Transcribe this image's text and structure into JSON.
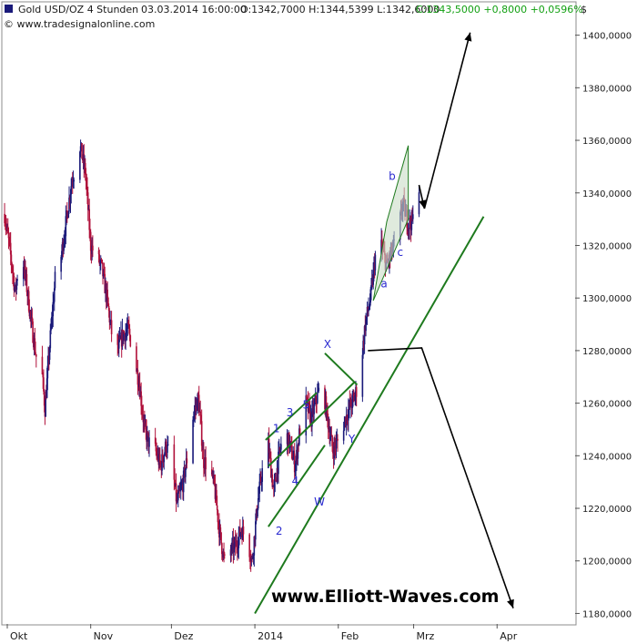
{
  "header": {
    "instrument": "Gold USD/OZ 4 Stunden",
    "datetime": "03.03.2014 16:00:00",
    "ohl": "O:1342,7000 H:1344,5399 L:1342,6000",
    "close_change": "C:1343,5000 +0,8000 +0,0596%",
    "copyright": "© www.tradesignalonline.com",
    "currency": "$"
  },
  "watermark": "www.Elliott-Waves.com",
  "colors": {
    "up_candle": "#1a1a7a",
    "down_candle": "#b0103a",
    "trend_green": "#1e7a1e",
    "channel_fill": "#c9dcc6",
    "wave_label": "#2a2ad0",
    "positive_change": "#12a012"
  },
  "chart_data": {
    "type": "candlestick",
    "title": "Gold USD/OZ 4 Stunden",
    "x_tick_labels": [
      "Okt",
      "Nov",
      "Dez",
      "2014",
      "Feb",
      "Mrz",
      "Apr"
    ],
    "y_ticks": [
      1180,
      1200,
      1220,
      1240,
      1260,
      1280,
      1300,
      1320,
      1340,
      1360,
      1380,
      1400
    ],
    "y_tick_labels": [
      "1180,0000",
      "1200,0000",
      "1220,0000",
      "1240,0000",
      "1260,0000",
      "1280,0000",
      "1300,0000",
      "1320,0000",
      "1340,0000",
      "1360,0000",
      "1380,0000",
      "1400,0000"
    ],
    "ylim": [
      1176,
      1412
    ],
    "x_domain": [
      "2013-10-01",
      "2014-04-30"
    ],
    "x_ticks": [
      "2013-10-01",
      "2013-11-01",
      "2013-12-01",
      "2014-01-01",
      "2014-02-01",
      "2014-03-01",
      "2014-04-01"
    ],
    "grid": false,
    "price_path": [
      [
        "2013-09-30",
        1332
      ],
      [
        "2013-10-02",
        1318
      ],
      [
        "2013-10-04",
        1302
      ],
      [
        "2013-10-06",
        1320
      ],
      [
        "2013-10-08",
        1306
      ],
      [
        "2013-10-10",
        1290
      ],
      [
        "2013-10-12",
        1276
      ],
      [
        "2013-10-14",
        1270
      ],
      [
        "2013-10-15",
        1258
      ],
      [
        "2013-10-17",
        1285
      ],
      [
        "2013-10-19",
        1310
      ],
      [
        "2013-10-21",
        1316
      ],
      [
        "2013-10-23",
        1330
      ],
      [
        "2013-10-25",
        1345
      ],
      [
        "2013-10-27",
        1352
      ],
      [
        "2013-10-28",
        1358
      ],
      [
        "2013-10-30",
        1348
      ],
      [
        "2013-11-01",
        1320
      ],
      [
        "2013-11-03",
        1316
      ],
      [
        "2013-11-05",
        1312
      ],
      [
        "2013-11-07",
        1300
      ],
      [
        "2013-11-09",
        1285
      ],
      [
        "2013-11-11",
        1280
      ],
      [
        "2013-11-13",
        1286
      ],
      [
        "2013-11-15",
        1288
      ],
      [
        "2013-11-17",
        1278
      ],
      [
        "2013-11-19",
        1268
      ],
      [
        "2013-11-21",
        1250
      ],
      [
        "2013-11-23",
        1244
      ],
      [
        "2013-11-25",
        1242
      ],
      [
        "2013-11-27",
        1236
      ],
      [
        "2013-11-29",
        1244
      ],
      [
        "2013-12-01",
        1238
      ],
      [
        "2013-12-03",
        1222
      ],
      [
        "2013-12-05",
        1228
      ],
      [
        "2013-12-07",
        1240
      ],
      [
        "2013-12-09",
        1255
      ],
      [
        "2013-12-11",
        1262
      ],
      [
        "2013-12-13",
        1238
      ],
      [
        "2013-12-15",
        1236
      ],
      [
        "2013-12-17",
        1228
      ],
      [
        "2013-12-19",
        1210
      ],
      [
        "2013-12-21",
        1198
      ],
      [
        "2013-12-23",
        1204
      ],
      [
        "2013-12-25",
        1206
      ],
      [
        "2013-12-27",
        1212
      ],
      [
        "2013-12-29",
        1208
      ],
      [
        "2013-12-31",
        1200
      ],
      [
        "2014-01-02",
        1222
      ],
      [
        "2014-01-04",
        1236
      ],
      [
        "2014-01-06",
        1244
      ],
      [
        "2014-01-08",
        1226
      ],
      [
        "2014-01-10",
        1240
      ],
      [
        "2014-01-12",
        1250
      ],
      [
        "2014-01-14",
        1244
      ],
      [
        "2014-01-16",
        1236
      ],
      [
        "2014-01-18",
        1252
      ],
      [
        "2014-01-20",
        1260
      ],
      [
        "2014-01-22",
        1254
      ],
      [
        "2014-01-24",
        1262
      ],
      [
        "2014-01-26",
        1268
      ],
      [
        "2014-01-28",
        1254
      ],
      [
        "2014-01-30",
        1242
      ],
      [
        "2014-02-01",
        1246
      ],
      [
        "2014-02-03",
        1252
      ],
      [
        "2014-02-05",
        1258
      ],
      [
        "2014-02-07",
        1262
      ],
      [
        "2014-02-09",
        1270
      ],
      [
        "2014-02-11",
        1290
      ],
      [
        "2014-02-13",
        1300
      ],
      [
        "2014-02-15",
        1318
      ],
      [
        "2014-02-17",
        1320
      ],
      [
        "2014-02-19",
        1312
      ],
      [
        "2014-02-21",
        1318
      ],
      [
        "2014-02-23",
        1324
      ],
      [
        "2014-02-25",
        1336
      ],
      [
        "2014-02-27",
        1328
      ],
      [
        "2014-03-01",
        1330
      ],
      [
        "2014-03-03",
        1343.5
      ]
    ],
    "annotations": {
      "wave_labels": [
        {
          "text": "1",
          "date": "2014-01-09",
          "price": 1249
        },
        {
          "text": "2",
          "date": "2014-01-10",
          "price": 1210
        },
        {
          "text": "3",
          "date": "2014-01-14",
          "price": 1255
        },
        {
          "text": "4",
          "date": "2014-01-16",
          "price": 1229
        },
        {
          "text": "5",
          "date": "2014-01-20",
          "price": 1258
        },
        {
          "text": "W",
          "date": "2014-01-25",
          "price": 1221
        },
        {
          "text": "X",
          "date": "2014-01-28",
          "price": 1281
        },
        {
          "text": "Y",
          "date": "2014-02-06",
          "price": 1245
        },
        {
          "text": "a",
          "date": "2014-02-18",
          "price": 1304
        },
        {
          "text": "b",
          "date": "2014-02-21",
          "price": 1345
        },
        {
          "text": "c",
          "date": "2014-02-24",
          "price": 1316
        }
      ],
      "green_lines": [
        {
          "from": [
            "2014-01-01",
            1180
          ],
          "to": [
            "2014-03-27",
            1331
          ]
        },
        {
          "from": [
            "2014-01-06",
            1236
          ],
          "to": [
            "2014-02-07",
            1268
          ]
        },
        {
          "from": [
            "2014-01-05",
            1246
          ],
          "to": [
            "2014-01-24",
            1264
          ]
        },
        {
          "from": [
            "2014-01-06",
            1213
          ],
          "to": [
            "2014-01-27",
            1244
          ]
        },
        {
          "from": [
            "2014-01-27",
            1279
          ],
          "to": [
            "2014-02-08",
            1267
          ]
        }
      ],
      "channel": [
        [
          "2014-02-14",
          1299
        ],
        [
          "2014-02-19",
          1329
        ],
        [
          "2014-02-27",
          1358
        ],
        [
          "2014-02-27",
          1330
        ]
      ],
      "black_arrows": [
        {
          "points": [
            [
              "2014-03-03",
              1343
            ],
            [
              "2014-03-05",
              1334
            ]
          ]
        },
        {
          "points": [
            [
              "2014-03-05",
              1334
            ],
            [
              "2014-03-22",
              1401
            ]
          ]
        },
        {
          "points": [
            [
              "2014-02-12",
              1280
            ],
            [
              "2014-03-04",
              1281
            ],
            [
              "2014-04-07",
              1182
            ]
          ]
        }
      ]
    }
  }
}
